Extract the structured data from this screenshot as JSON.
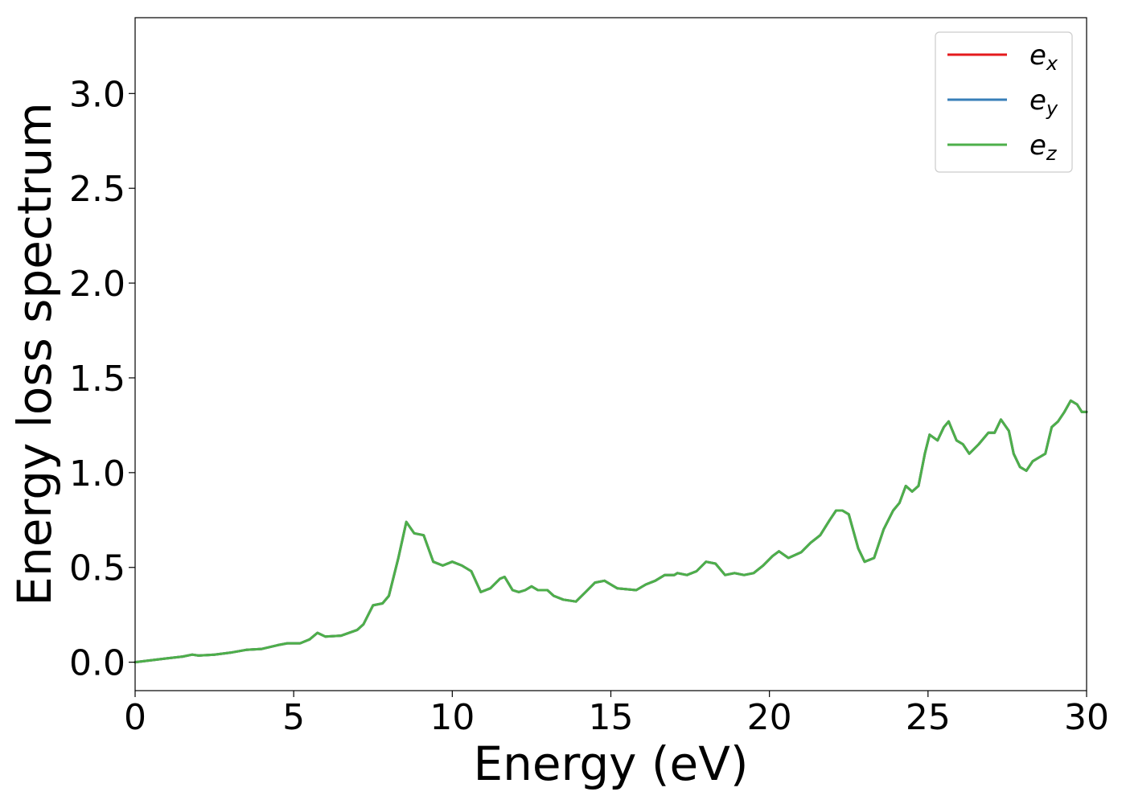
{
  "chart_data": {
    "type": "line",
    "xlabel": "Energy (eV)",
    "ylabel": "Energy loss spectrum",
    "xlim": [
      0,
      30
    ],
    "ylim": [
      -0.15,
      3.4
    ],
    "xticks": [
      0,
      5,
      10,
      15,
      20,
      25,
      30
    ],
    "xtick_labels": [
      "0",
      "5",
      "10",
      "15",
      "20",
      "25",
      "30"
    ],
    "yticks": [
      0.0,
      0.5,
      1.0,
      1.5,
      2.0,
      2.5,
      3.0
    ],
    "ytick_labels": [
      "0.0",
      "0.5",
      "1.0",
      "1.5",
      "2.0",
      "2.5",
      "3.0"
    ],
    "grid": false,
    "legend_position": "top-right",
    "x": [
      0,
      0.5,
      1,
      1.5,
      1.8,
      2,
      2.5,
      3,
      3.5,
      4,
      4.5,
      4.8,
      5.2,
      5.5,
      5.75,
      6,
      6.5,
      7,
      7.2,
      7.5,
      7.8,
      8,
      8.3,
      8.55,
      8.8,
      9.1,
      9.4,
      9.7,
      10,
      10.3,
      10.6,
      10.9,
      11.2,
      11.5,
      11.65,
      11.9,
      12.1,
      12.3,
      12.5,
      12.7,
      13,
      13.2,
      13.5,
      13.9,
      14.2,
      14.5,
      14.8,
      15.2,
      15.5,
      15.8,
      16.1,
      16.4,
      16.7,
      17,
      17.1,
      17.4,
      17.7,
      18,
      18.3,
      18.6,
      18.9,
      19.2,
      19.5,
      19.8,
      20.1,
      20.3,
      20.6,
      21,
      21.3,
      21.6,
      21.9,
      22.1,
      22.3,
      22.5,
      22.8,
      23,
      23.3,
      23.6,
      23.9,
      24.1,
      24.3,
      24.5,
      24.7,
      24.9,
      25.05,
      25.3,
      25.5,
      25.65,
      25.9,
      26.1,
      26.3,
      26.6,
      26.9,
      27.1,
      27.3,
      27.55,
      27.7,
      27.9,
      28.1,
      28.3,
      28.5,
      28.7,
      28.9,
      29.1,
      29.3,
      29.5,
      29.7,
      29.85,
      30
    ],
    "series": [
      {
        "name": "e_x",
        "color": "#e41a1c",
        "values": [
          0,
          0.01,
          0.02,
          0.03,
          0.04,
          0.035,
          0.04,
          0.05,
          0.065,
          0.07,
          0.09,
          0.1,
          0.1,
          0.12,
          0.155,
          0.135,
          0.14,
          0.17,
          0.2,
          0.3,
          0.31,
          0.35,
          0.55,
          0.74,
          0.68,
          0.67,
          0.53,
          0.51,
          0.53,
          0.51,
          0.48,
          0.37,
          0.39,
          0.44,
          0.45,
          0.38,
          0.37,
          0.38,
          0.4,
          0.38,
          0.38,
          0.35,
          0.33,
          0.32,
          0.37,
          0.42,
          0.43,
          0.39,
          0.385,
          0.38,
          0.41,
          0.43,
          0.46,
          0.46,
          0.47,
          0.46,
          0.48,
          0.53,
          0.52,
          0.46,
          0.47,
          0.46,
          0.47,
          0.51,
          0.56,
          0.585,
          0.55,
          0.58,
          0.63,
          0.67,
          0.75,
          0.8,
          0.8,
          0.78,
          0.6,
          0.53,
          0.55,
          0.7,
          0.8,
          0.84,
          0.93,
          0.9,
          0.93,
          1.1,
          1.2,
          1.17,
          1.24,
          1.27,
          1.17,
          1.15,
          1.1,
          1.15,
          1.21,
          1.21,
          1.28,
          1.22,
          1.1,
          1.03,
          1.01,
          1.06,
          1.08,
          1.1,
          1.24,
          1.27,
          1.32,
          1.38,
          1.36,
          1.32,
          1.32
        ]
      },
      {
        "name": "e_y",
        "color": "#377eb8",
        "values": [
          0,
          0.01,
          0.02,
          0.03,
          0.04,
          0.035,
          0.04,
          0.05,
          0.065,
          0.07,
          0.09,
          0.1,
          0.1,
          0.12,
          0.155,
          0.135,
          0.14,
          0.17,
          0.2,
          0.3,
          0.31,
          0.35,
          0.55,
          0.74,
          0.68,
          0.67,
          0.53,
          0.51,
          0.53,
          0.51,
          0.48,
          0.37,
          0.39,
          0.44,
          0.45,
          0.38,
          0.37,
          0.38,
          0.4,
          0.38,
          0.38,
          0.35,
          0.33,
          0.32,
          0.37,
          0.42,
          0.43,
          0.39,
          0.385,
          0.38,
          0.41,
          0.43,
          0.46,
          0.46,
          0.47,
          0.46,
          0.48,
          0.53,
          0.52,
          0.46,
          0.47,
          0.46,
          0.47,
          0.51,
          0.56,
          0.585,
          0.55,
          0.58,
          0.63,
          0.67,
          0.75,
          0.8,
          0.8,
          0.78,
          0.6,
          0.53,
          0.55,
          0.7,
          0.8,
          0.84,
          0.93,
          0.9,
          0.93,
          1.1,
          1.2,
          1.17,
          1.24,
          1.27,
          1.17,
          1.15,
          1.1,
          1.15,
          1.21,
          1.21,
          1.28,
          1.22,
          1.1,
          1.03,
          1.01,
          1.06,
          1.08,
          1.1,
          1.24,
          1.27,
          1.32,
          1.38,
          1.36,
          1.32,
          1.32
        ]
      },
      {
        "name": "e_z",
        "color": "#4daf4a",
        "values": [
          0,
          0.01,
          0.02,
          0.03,
          0.04,
          0.035,
          0.04,
          0.05,
          0.065,
          0.07,
          0.09,
          0.1,
          0.1,
          0.12,
          0.155,
          0.135,
          0.14,
          0.17,
          0.2,
          0.3,
          0.31,
          0.35,
          0.55,
          0.74,
          0.68,
          0.67,
          0.53,
          0.51,
          0.53,
          0.51,
          0.48,
          0.37,
          0.39,
          0.44,
          0.45,
          0.38,
          0.37,
          0.38,
          0.4,
          0.38,
          0.38,
          0.35,
          0.33,
          0.32,
          0.37,
          0.42,
          0.43,
          0.39,
          0.385,
          0.38,
          0.41,
          0.43,
          0.46,
          0.46,
          0.47,
          0.46,
          0.48,
          0.53,
          0.52,
          0.46,
          0.47,
          0.46,
          0.47,
          0.51,
          0.56,
          0.585,
          0.55,
          0.58,
          0.63,
          0.67,
          0.75,
          0.8,
          0.8,
          0.78,
          0.6,
          0.53,
          0.55,
          0.7,
          0.8,
          0.84,
          0.93,
          0.9,
          0.93,
          1.1,
          1.2,
          1.17,
          1.24,
          1.27,
          1.17,
          1.15,
          1.1,
          1.15,
          1.21,
          1.21,
          1.28,
          1.22,
          1.1,
          1.03,
          1.01,
          1.06,
          1.08,
          1.1,
          1.24,
          1.27,
          1.32,
          1.38,
          1.36,
          1.32,
          1.32
        ]
      }
    ],
    "legend": [
      {
        "base": "e",
        "sub": "x",
        "color": "#e41a1c"
      },
      {
        "base": "e",
        "sub": "y",
        "color": "#377eb8"
      },
      {
        "base": "e",
        "sub": "z",
        "color": "#4daf4a"
      }
    ]
  }
}
